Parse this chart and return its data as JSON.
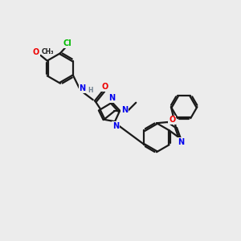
{
  "background_color": "#ececec",
  "bond_color": "#1a1a1a",
  "atom_colors": {
    "N": "#0000ee",
    "O": "#ee0000",
    "Cl": "#00bb00",
    "H": "#708090",
    "C": "#1a1a1a"
  },
  "figsize": [
    3.0,
    3.0
  ],
  "dpi": 100,
  "xlim": [
    0,
    12
  ],
  "ylim": [
    0,
    12
  ],
  "lw": 1.6,
  "fs": 7.0,
  "ring_r": 0.72,
  "double_sep": 0.09
}
